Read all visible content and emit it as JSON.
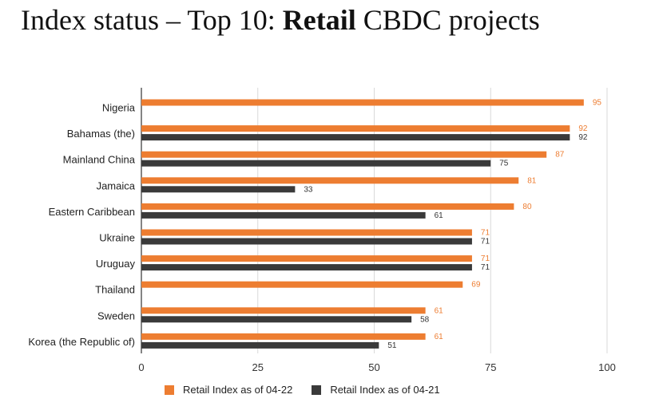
{
  "header": {
    "title_pre": "Index status – Top 10: ",
    "title_bold": "Retail",
    "title_post": " CBDC projects"
  },
  "colors": {
    "series_2022": "#ed7d31",
    "series_2021": "#3a3a3a",
    "grid": "#d9d9d9"
  },
  "chart_data": {
    "type": "bar",
    "orientation": "horizontal",
    "categories": [
      "Nigeria",
      "Bahamas (the)",
      "Mainland China",
      "Jamaica",
      "Eastern Caribbean",
      "Ukraine",
      "Uruguay",
      "Thailand",
      "Sweden",
      "Korea (the Republic of)"
    ],
    "series": [
      {
        "name": "Retail Index as of 04-22",
        "values": [
          95,
          92,
          87,
          81,
          80,
          71,
          71,
          69,
          61,
          61
        ],
        "labels": [
          "95",
          "92",
          "87",
          "81",
          "80",
          "71",
          "71",
          "69",
          "61",
          "61"
        ]
      },
      {
        "name": "Retail Index as of 04-21",
        "values": [
          null,
          92,
          75,
          33,
          61,
          71,
          71,
          null,
          58,
          51
        ],
        "labels": [
          "",
          "92",
          "75",
          "33",
          "61",
          "71",
          "71",
          "",
          "58",
          "51"
        ]
      }
    ],
    "xlim": [
      0,
      100
    ],
    "xticks": [
      0,
      25,
      50,
      75,
      100
    ],
    "xtick_labels": [
      "0",
      "25",
      "50",
      "75",
      "100"
    ],
    "grid": "vertical",
    "legend_position": "bottom"
  }
}
